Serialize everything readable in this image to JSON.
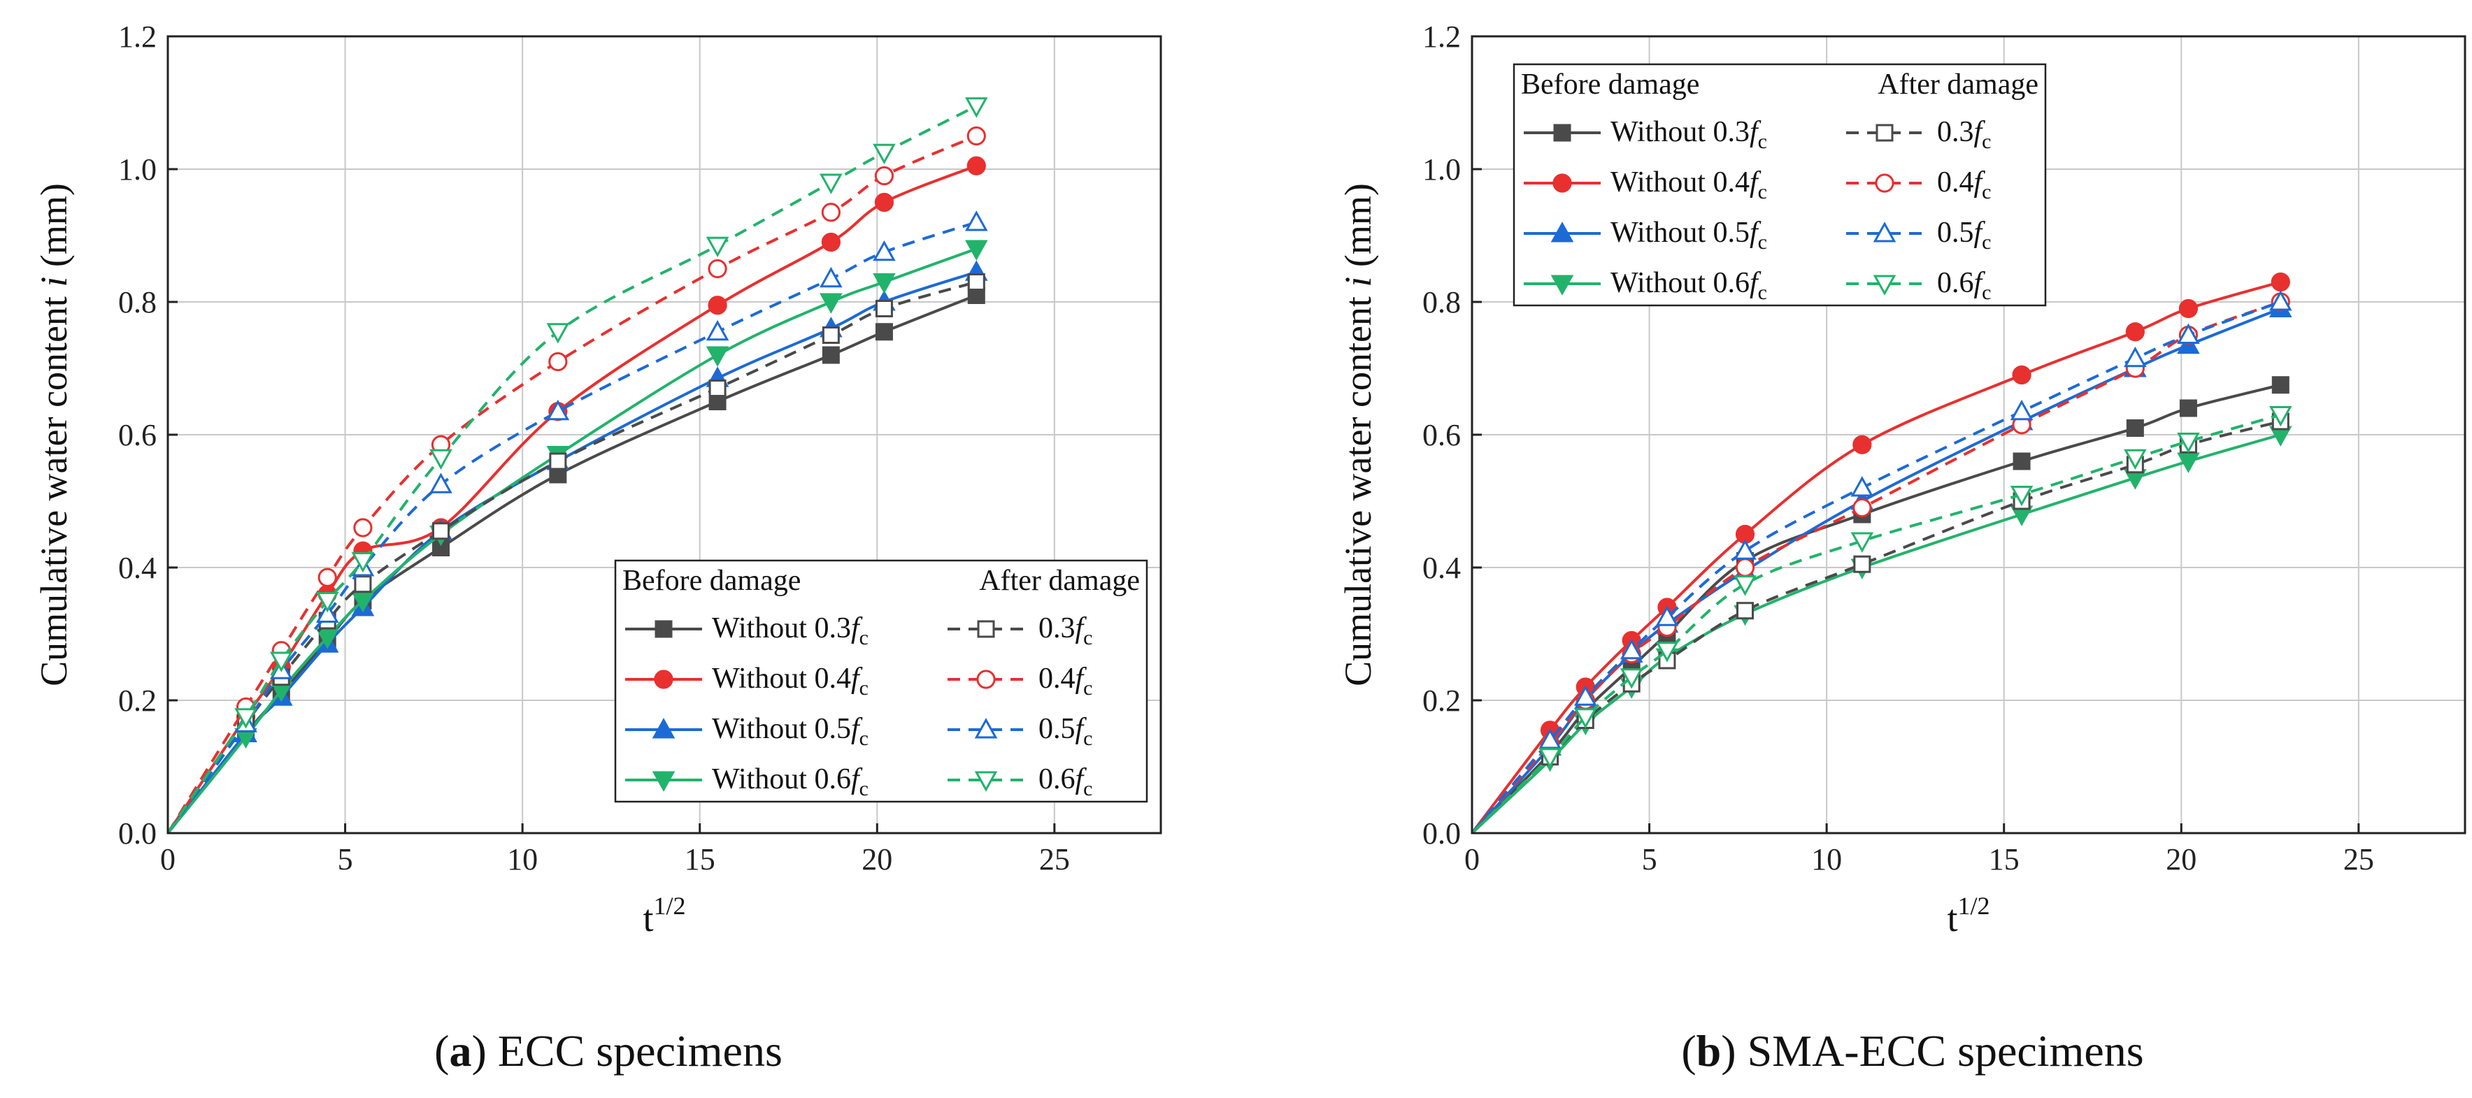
{
  "chart_data": [
    {
      "type": "line",
      "panel_label": "a",
      "caption": "ECC specimens",
      "xlabel": "t",
      "xlabel_sup": "1/2",
      "ylabel": "Cumulative water content ",
      "ylabel_var": "i",
      "ylabel_unit": " (mm)",
      "xlim": [
        0,
        28
      ],
      "ylim": [
        0,
        1.2
      ],
      "xticks": [
        "0",
        "5",
        "10",
        "15",
        "20",
        "25"
      ],
      "yticks": [
        "0.0",
        "0.2",
        "0.4",
        "0.6",
        "0.8",
        "1.0",
        "1.2"
      ],
      "legend": {
        "before_title": "Before damage",
        "after_title": "After damage",
        "placement": "lower-right",
        "before_prefix": "Without "
      },
      "series": [
        {
          "name": "0.3",
          "label_prefix": "Without ",
          "color": "#4a4a4a",
          "marker": "square",
          "filled": true,
          "dash": false,
          "x": [
            0,
            2.2,
            3.2,
            4.5,
            5.5,
            7.7,
            11,
            15.5,
            18.7,
            20.2,
            22.8
          ],
          "values": [
            0,
            0.15,
            0.21,
            0.29,
            0.35,
            0.43,
            0.54,
            0.65,
            0.72,
            0.755,
            0.81
          ]
        },
        {
          "name": "0.4",
          "label_prefix": "Without ",
          "color": "#e8302f",
          "marker": "circle",
          "filled": true,
          "dash": false,
          "x": [
            0,
            2.2,
            3.2,
            4.5,
            5.5,
            7.7,
            11,
            15.5,
            18.7,
            20.2,
            22.8
          ],
          "values": [
            0,
            0.175,
            0.25,
            0.36,
            0.425,
            0.46,
            0.635,
            0.795,
            0.89,
            0.95,
            1.005
          ]
        },
        {
          "name": "0.5",
          "label_prefix": "Without ",
          "color": "#1c6ad6",
          "marker": "triangle-up",
          "filled": true,
          "dash": false,
          "x": [
            0,
            2.2,
            3.2,
            4.5,
            5.5,
            7.7,
            11,
            15.5,
            18.7,
            20.2,
            22.8
          ],
          "values": [
            0,
            0.15,
            0.205,
            0.285,
            0.34,
            0.455,
            0.56,
            0.685,
            0.76,
            0.8,
            0.845
          ]
        },
        {
          "name": "0.6",
          "label_prefix": "Without ",
          "color": "#22b36b",
          "marker": "triangle-down",
          "filled": true,
          "dash": false,
          "x": [
            0,
            2.2,
            3.2,
            4.5,
            5.5,
            7.7,
            11,
            15.5,
            18.7,
            20.2,
            22.8
          ],
          "values": [
            0,
            0.145,
            0.215,
            0.295,
            0.35,
            0.45,
            0.57,
            0.72,
            0.8,
            0.83,
            0.88
          ]
        },
        {
          "name": "0.3",
          "label_prefix": "",
          "color": "#4a4a4a",
          "marker": "square",
          "filled": false,
          "dash": true,
          "x": [
            0,
            2.2,
            3.2,
            4.5,
            5.5,
            7.7,
            11,
            15.5,
            18.7,
            20.2,
            22.8
          ],
          "values": [
            0,
            0.165,
            0.235,
            0.32,
            0.375,
            0.455,
            0.56,
            0.67,
            0.75,
            0.79,
            0.83
          ]
        },
        {
          "name": "0.4",
          "label_prefix": "",
          "color": "#e8302f",
          "marker": "circle",
          "filled": false,
          "dash": true,
          "x": [
            0,
            2.2,
            3.2,
            4.5,
            5.5,
            7.7,
            11,
            15.5,
            18.7,
            20.2,
            22.8
          ],
          "values": [
            0,
            0.19,
            0.275,
            0.385,
            0.46,
            0.585,
            0.71,
            0.85,
            0.935,
            0.99,
            1.05
          ]
        },
        {
          "name": "0.5",
          "label_prefix": "",
          "color": "#1c6ad6",
          "marker": "triangle-up",
          "filled": false,
          "dash": true,
          "x": [
            0,
            2.2,
            3.2,
            4.5,
            5.5,
            7.7,
            11,
            15.5,
            18.7,
            20.2,
            22.8
          ],
          "values": [
            0,
            0.165,
            0.245,
            0.33,
            0.4,
            0.525,
            0.635,
            0.755,
            0.835,
            0.875,
            0.92
          ]
        },
        {
          "name": "0.6",
          "label_prefix": "",
          "color": "#22b36b",
          "marker": "triangle-down",
          "filled": false,
          "dash": true,
          "x": [
            0,
            2.2,
            3.2,
            4.5,
            5.5,
            7.7,
            11,
            15.5,
            18.7,
            20.2,
            22.8
          ],
          "values": [
            0,
            0.175,
            0.26,
            0.35,
            0.41,
            0.565,
            0.755,
            0.885,
            0.98,
            1.025,
            1.095
          ]
        }
      ]
    },
    {
      "type": "line",
      "panel_label": "b",
      "caption": "SMA-ECC specimens",
      "xlabel": "t",
      "xlabel_sup": "1/2",
      "ylabel": "Cumulative water content ",
      "ylabel_var": "i",
      "ylabel_unit": " (mm)",
      "xlim": [
        0,
        28
      ],
      "ylim": [
        0,
        1.2
      ],
      "xticks": [
        "0",
        "5",
        "10",
        "15",
        "20",
        "25"
      ],
      "yticks": [
        "0.0",
        "0.2",
        "0.4",
        "0.6",
        "0.8",
        "1.0",
        "1.2"
      ],
      "legend": {
        "before_title": "Before damage",
        "after_title": "After damage",
        "placement": "upper-left",
        "before_prefix": "Without "
      },
      "series": [
        {
          "name": "0.3",
          "label_prefix": "Without ",
          "color": "#4a4a4a",
          "marker": "square",
          "filled": true,
          "dash": false,
          "x": [
            0,
            2.2,
            3.2,
            4.5,
            5.5,
            7.7,
            11,
            15.5,
            18.7,
            20.2,
            22.8
          ],
          "values": [
            0,
            0.12,
            0.185,
            0.25,
            0.3,
            0.41,
            0.48,
            0.56,
            0.61,
            0.64,
            0.675
          ]
        },
        {
          "name": "0.4",
          "label_prefix": "Without ",
          "color": "#e8302f",
          "marker": "circle",
          "filled": true,
          "dash": false,
          "x": [
            0,
            2.2,
            3.2,
            4.5,
            5.5,
            7.7,
            11,
            15.5,
            18.7,
            20.2,
            22.8
          ],
          "values": [
            0,
            0.155,
            0.22,
            0.29,
            0.34,
            0.45,
            0.585,
            0.69,
            0.755,
            0.79,
            0.83
          ]
        },
        {
          "name": "0.5",
          "label_prefix": "Without ",
          "color": "#1c6ad6",
          "marker": "triangle-up",
          "filled": true,
          "dash": false,
          "x": [
            0,
            2.2,
            3.2,
            4.5,
            5.5,
            7.7,
            11,
            15.5,
            18.7,
            20.2,
            22.8
          ],
          "values": [
            0,
            0.13,
            0.2,
            0.27,
            0.315,
            0.395,
            0.5,
            0.62,
            0.7,
            0.735,
            0.79
          ]
        },
        {
          "name": "0.6",
          "label_prefix": "Without ",
          "color": "#22b36b",
          "marker": "triangle-down",
          "filled": true,
          "dash": false,
          "x": [
            0,
            2.2,
            3.2,
            4.5,
            5.5,
            7.7,
            11,
            15.5,
            18.7,
            20.2,
            22.8
          ],
          "values": [
            0,
            0.11,
            0.165,
            0.22,
            0.265,
            0.33,
            0.4,
            0.48,
            0.535,
            0.56,
            0.6
          ]
        },
        {
          "name": "0.3",
          "label_prefix": "",
          "color": "#4a4a4a",
          "marker": "square",
          "filled": false,
          "dash": true,
          "x": [
            0,
            2.2,
            3.2,
            4.5,
            5.5,
            7.7,
            11,
            15.5,
            18.7,
            20.2,
            22.8
          ],
          "values": [
            0,
            0.115,
            0.17,
            0.225,
            0.26,
            0.335,
            0.405,
            0.5,
            0.555,
            0.585,
            0.62
          ]
        },
        {
          "name": "0.4",
          "label_prefix": "",
          "color": "#e8302f",
          "marker": "circle",
          "filled": false,
          "dash": true,
          "x": [
            0,
            2.2,
            3.2,
            4.5,
            5.5,
            7.7,
            11,
            15.5,
            18.7,
            20.2,
            22.8
          ],
          "values": [
            0,
            0.135,
            0.2,
            0.27,
            0.31,
            0.4,
            0.49,
            0.615,
            0.7,
            0.75,
            0.8
          ]
        },
        {
          "name": "0.5",
          "label_prefix": "",
          "color": "#1c6ad6",
          "marker": "triangle-up",
          "filled": false,
          "dash": true,
          "x": [
            0,
            2.2,
            3.2,
            4.5,
            5.5,
            7.7,
            11,
            15.5,
            18.7,
            20.2,
            22.8
          ],
          "values": [
            0,
            0.14,
            0.205,
            0.275,
            0.325,
            0.425,
            0.52,
            0.635,
            0.715,
            0.75,
            0.8
          ]
        },
        {
          "name": "0.6",
          "label_prefix": "",
          "color": "#22b36b",
          "marker": "triangle-down",
          "filled": false,
          "dash": true,
          "x": [
            0,
            2.2,
            3.2,
            4.5,
            5.5,
            7.7,
            11,
            15.5,
            18.7,
            20.2,
            22.8
          ],
          "values": [
            0,
            0.115,
            0.175,
            0.235,
            0.275,
            0.375,
            0.44,
            0.51,
            0.565,
            0.59,
            0.63
          ]
        }
      ]
    }
  ]
}
